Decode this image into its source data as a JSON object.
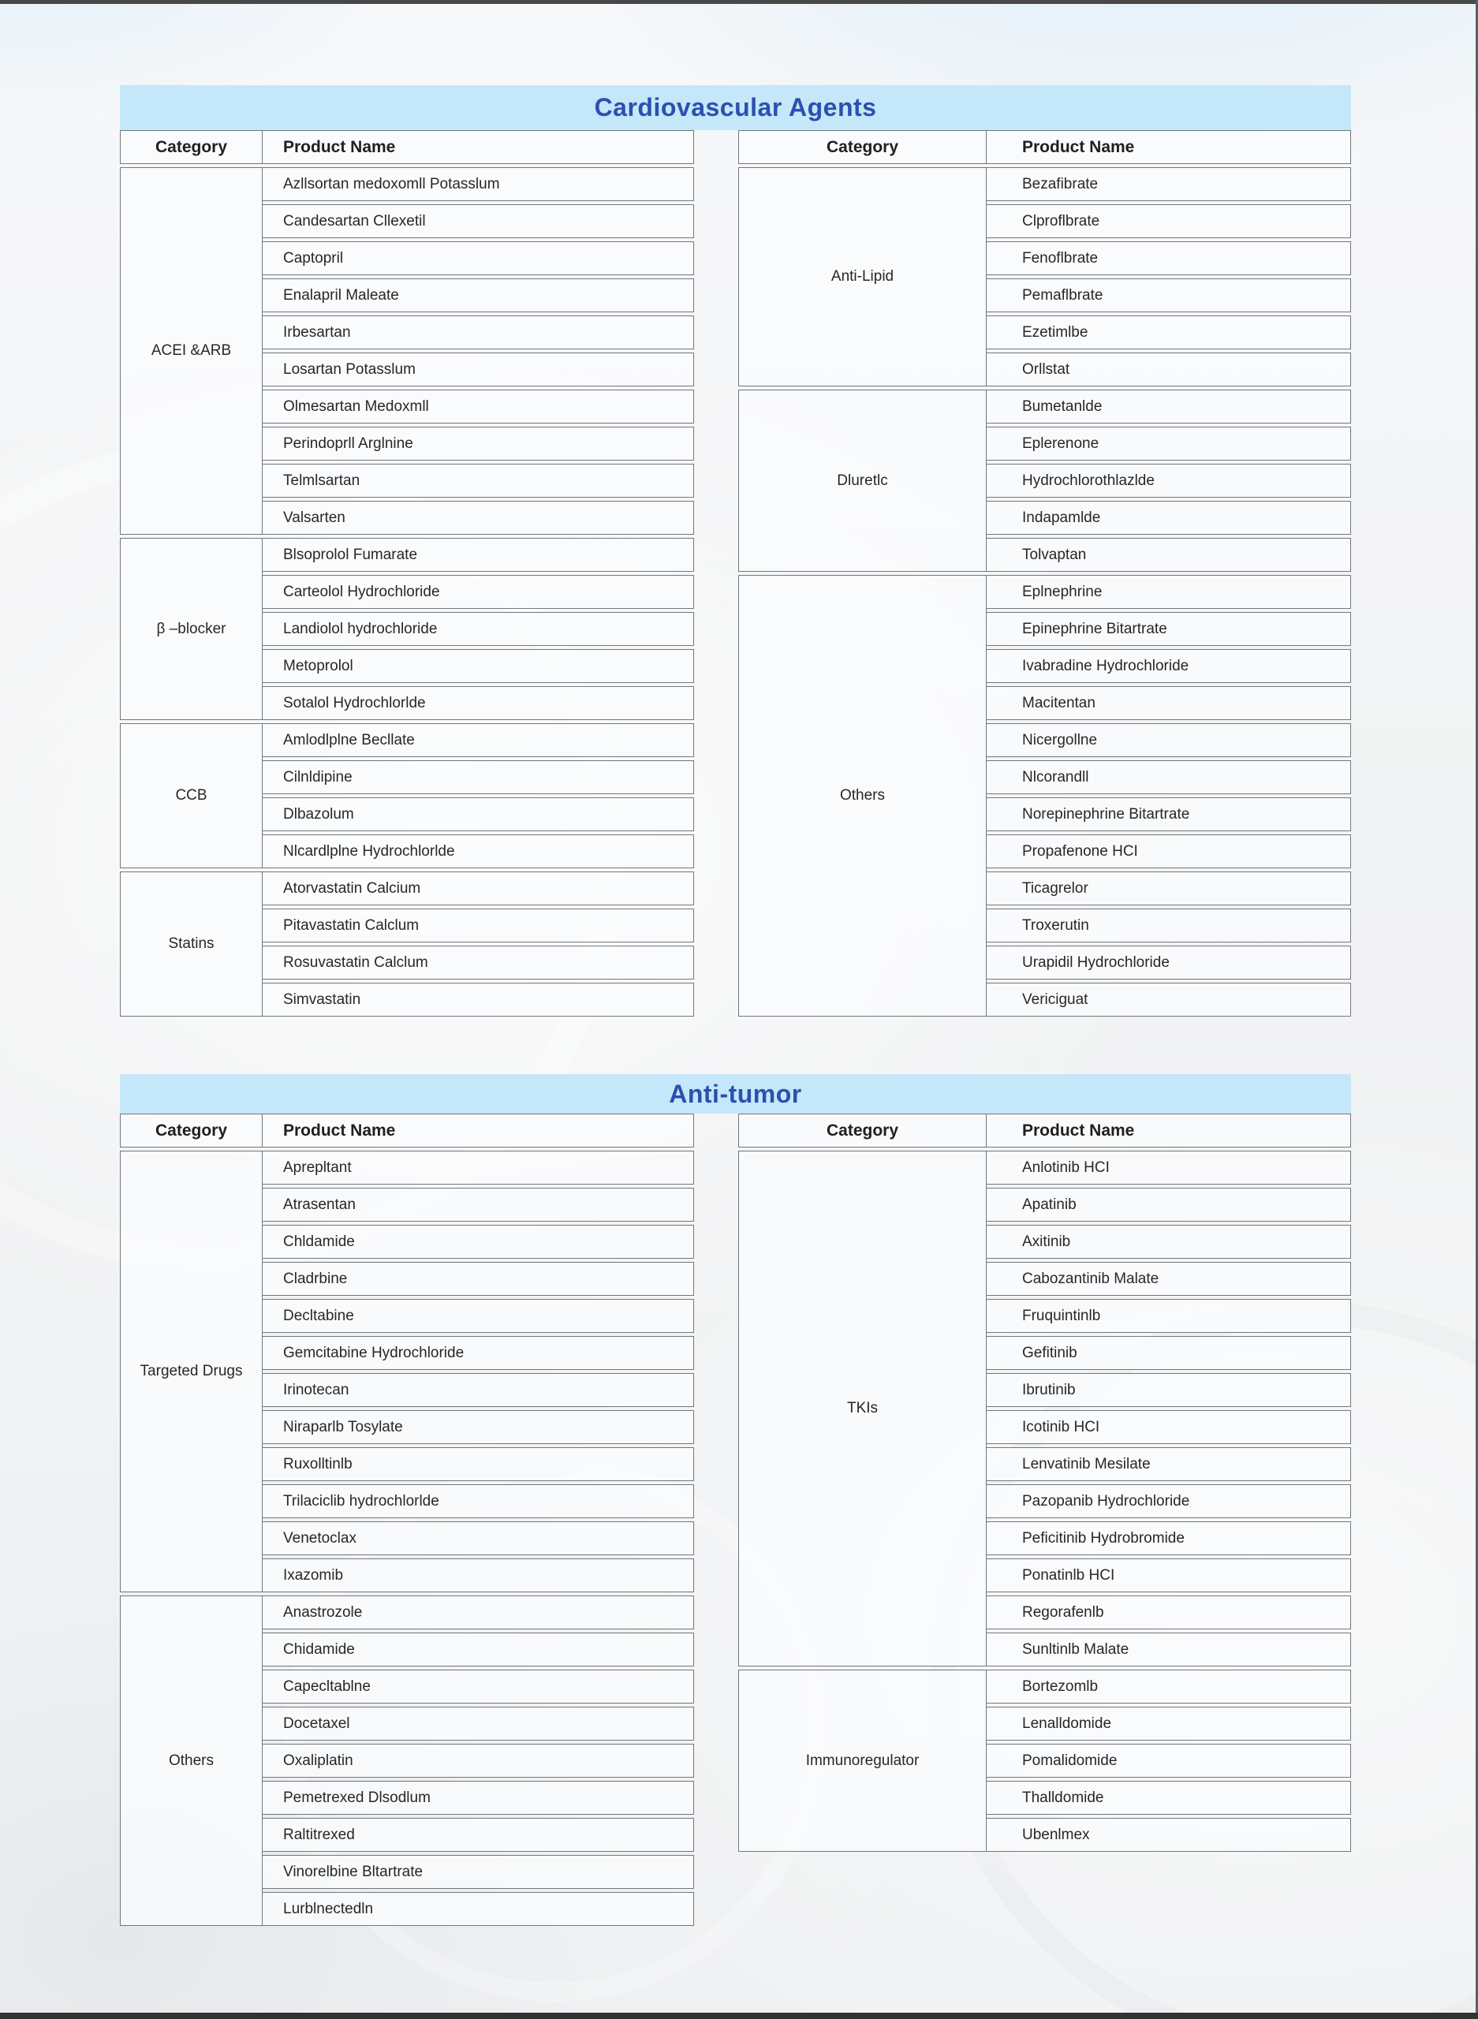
{
  "colors": {
    "banner_bg": "#c4e7f9",
    "title_text": "#2c4fb0",
    "cell_border": "#73777b",
    "cell_text": "#272727"
  },
  "tables": [
    {
      "title": "Cardiovascular Agents",
      "left": {
        "headers": {
          "category": "Category",
          "product": "Product Name"
        },
        "groups": [
          {
            "category": "ACEI &ARB",
            "products": [
              "Azllsortan medoxomll Potasslum",
              "Candesartan Cllexetil",
              "Captopril",
              "Enalapril Maleate",
              "Irbesartan",
              "Losartan Potasslum",
              "Olmesartan Medoxmll",
              "Perindoprll Arglnine",
              "Telmlsartan",
              "Valsarten"
            ]
          },
          {
            "category": "β –blocker",
            "products": [
              "Blsoprolol Fumarate",
              "Carteolol Hydrochloride",
              "Landiolol hydrochloride",
              "Metoprolol",
              "Sotalol Hydrochlorlde"
            ]
          },
          {
            "category": "CCB",
            "products": [
              "Amlodlplne Becllate",
              "Cilnldipine",
              "Dlbazolum",
              "Nlcardlplne Hydrochlorlde"
            ]
          },
          {
            "category": "Statins",
            "products": [
              "Atorvastatin Calcium",
              "Pitavastatin Calclum",
              "Rosuvastatin Calclum",
              "Simvastatin"
            ]
          }
        ]
      },
      "right": {
        "headers": {
          "category": "Category",
          "product": "Product Name"
        },
        "groups": [
          {
            "category": "Anti-Lipid",
            "products": [
              "Bezafibrate",
              "Clproflbrate",
              "Fenoflbrate",
              "Pemaflbrate",
              "Ezetimlbe",
              "Orllstat"
            ]
          },
          {
            "category": "Dluretlc",
            "products": [
              "Bumetanlde",
              "Eplerenone",
              "Hydrochlorothlazlde",
              "Indapamlde",
              "Tolvaptan"
            ]
          },
          {
            "category": "Others",
            "products": [
              "Eplnephrine",
              "Epinephrine Bitartrate",
              "Ivabradine Hydrochloride",
              "Macitentan",
              "Nicergollne",
              "Nlcorandll",
              "Norepinephrine Bitartrate",
              "Propafenone HCI",
              "Ticagrelor",
              "Troxerutin",
              "Urapidil Hydrochloride",
              "Vericiguat"
            ]
          }
        ]
      }
    },
    {
      "title": "Anti-tumor",
      "left": {
        "headers": {
          "category": "Category",
          "product": "Product Name"
        },
        "groups": [
          {
            "category": "Targeted Drugs",
            "products": [
              "Aprepltant",
              "Atrasentan",
              "Chldamide",
              "Cladrbine",
              "Decltabine",
              "Gemcitabine Hydrochloride",
              "Irinotecan",
              "Niraparlb Tosylate",
              "Ruxolltinlb",
              "Trilaciclib hydrochlorlde",
              "Venetoclax",
              "Ixazomib"
            ]
          },
          {
            "category": "Others",
            "products": [
              "Anastrozole",
              "Chidamide",
              "Capecltablne",
              "Docetaxel",
              "Oxaliplatin",
              "Pemetrexed Dlsodlum",
              "Raltitrexed",
              "Vinorelbine Bltartrate",
              "Lurblnectedln"
            ]
          }
        ]
      },
      "right": {
        "headers": {
          "category": "Category",
          "product": "Product Name"
        },
        "groups": [
          {
            "category": "TKIs",
            "products": [
              "Anlotinib HCI",
              "Apatinib",
              "Axitinib",
              "Cabozantinib Malate",
              "Fruquintinlb",
              "Gefitinib",
              "Ibrutinib",
              "Icotinib HCI",
              "Lenvatinib Mesilate",
              "Pazopanib Hydrochloride",
              "Peficitinib Hydrobromide",
              "Ponatinlb HCI",
              "Regorafenlb",
              "Sunltinlb Malate"
            ]
          },
          {
            "category": "Immunoregulator",
            "products": [
              "Bortezomlb",
              "Lenalldomide",
              "Pomalidomide",
              "Thalldomide",
              "Ubenlmex"
            ]
          }
        ]
      }
    }
  ]
}
